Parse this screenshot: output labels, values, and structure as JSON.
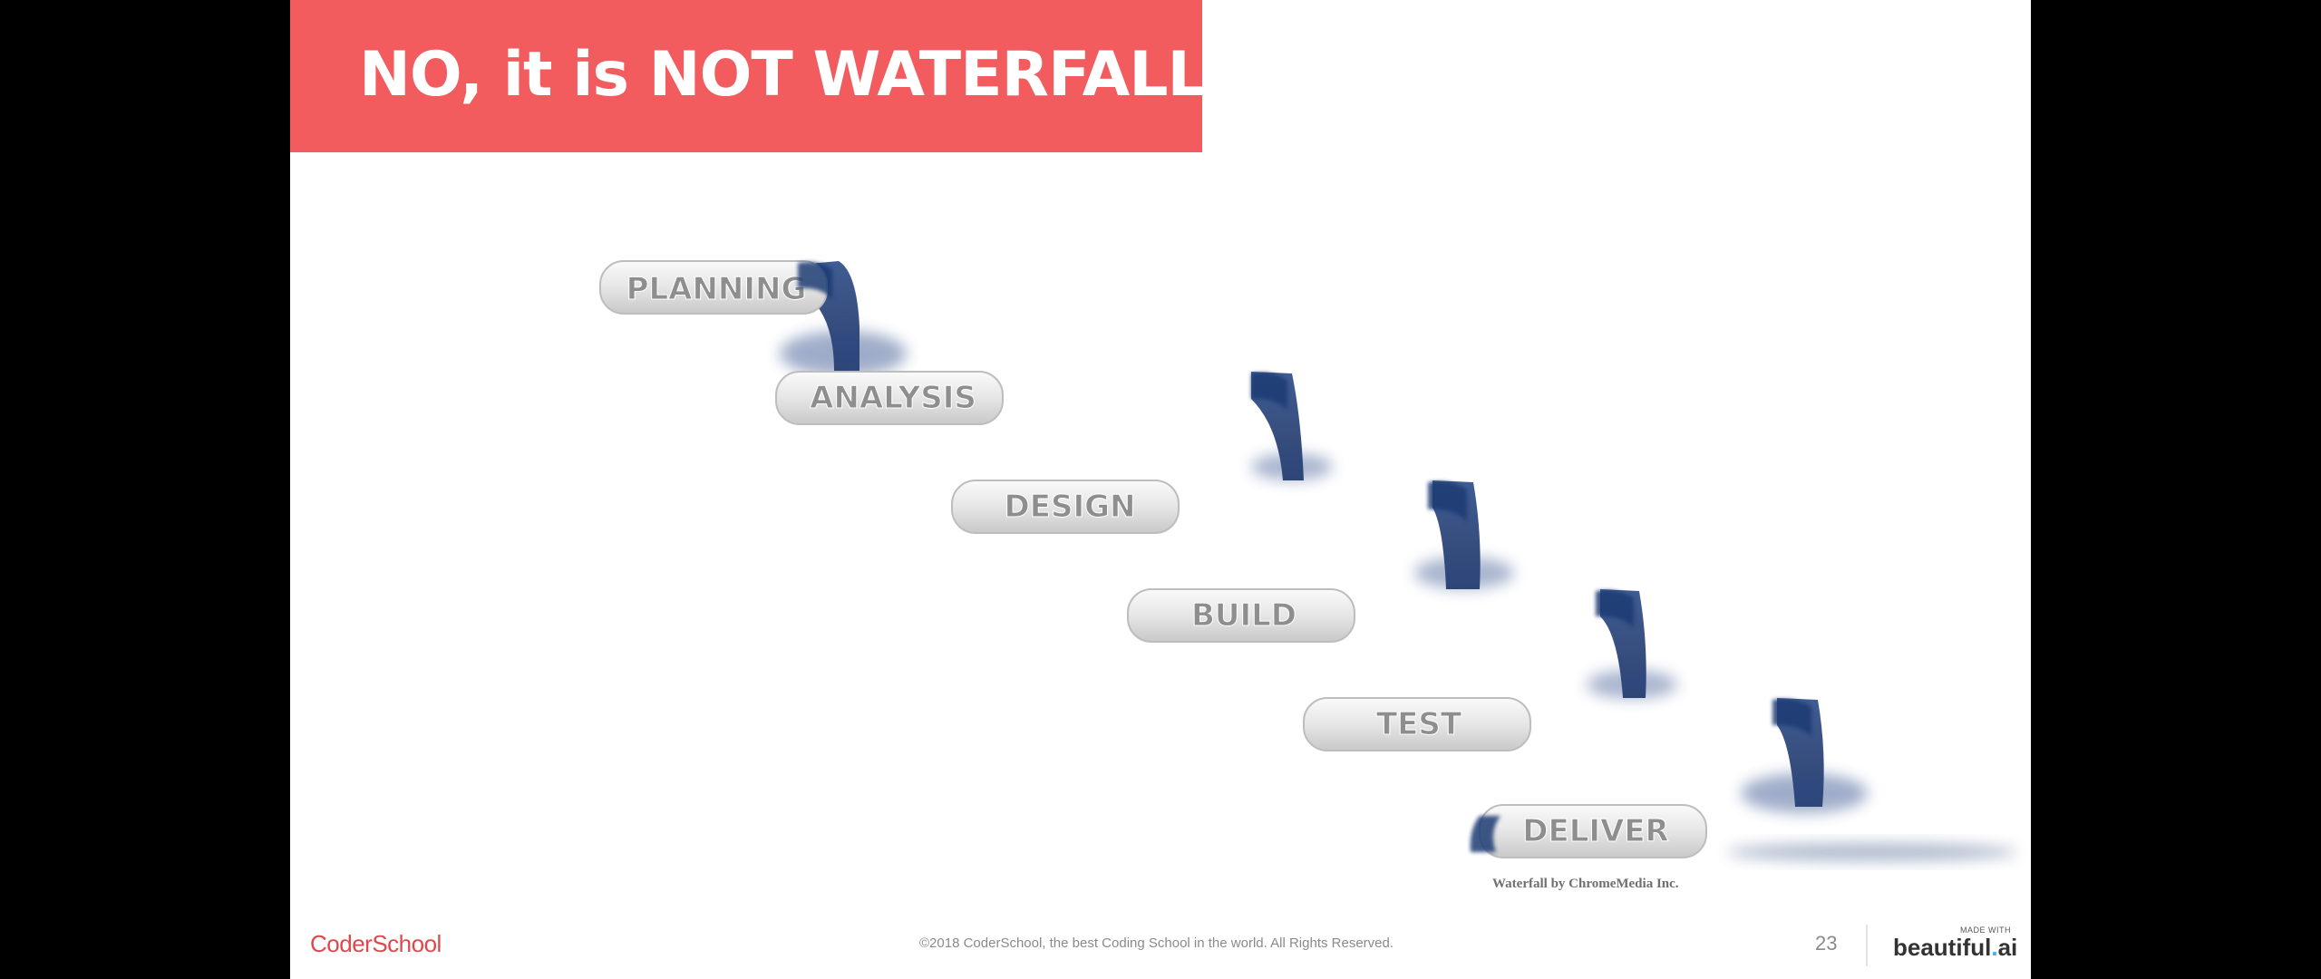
{
  "slide": {
    "title": "NO, it is NOT WATERFALL!",
    "steps": [
      "PLANNING",
      "ANALYSIS",
      "DESIGN",
      "BUILD",
      "TEST",
      "DELIVER"
    ],
    "image_credit": "Waterfall by ChromeMedia Inc."
  },
  "footer": {
    "logo_text": "CoderSchool",
    "copyright": "©2018 CoderSchool, the best Coding School in the world. All Rights Reserved.",
    "page_number": "23",
    "made_with_label": "MADE WITH",
    "brand_name": "beautiful",
    "brand_dot": ".",
    "brand_suffix": "ai"
  },
  "colors": {
    "title_bar": "#f25c5f",
    "water": "#1f3a73",
    "step_text": "#8e8e8e",
    "logo": "#e0474c"
  }
}
